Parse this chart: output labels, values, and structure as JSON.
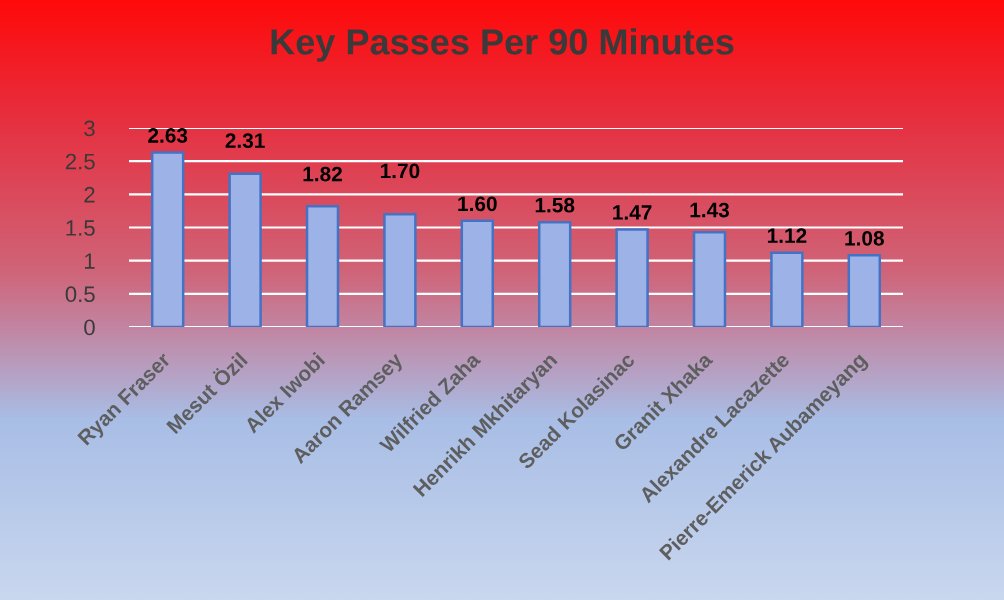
{
  "chart_data": {
    "type": "bar",
    "title": "Key Passes Per 90 Minutes",
    "categories": [
      "Ryan Fraser",
      "Mesut Özil",
      "Alex Iwobi",
      "Aaron Ramsey",
      "Wilfried Zaha",
      "Henrikh Mkhitaryan",
      "Sead Kolasinac",
      "Granit Xhaka",
      "Alexandre Lacazette",
      "Pierre-Emerick Aubameyang"
    ],
    "values": [
      2.63,
      2.31,
      1.82,
      1.7,
      1.6,
      1.58,
      1.47,
      1.43,
      1.12,
      1.08
    ],
    "value_labels": [
      "2.63",
      "2.31",
      "1.82",
      "1.70",
      "1.60",
      "1.58",
      "1.47",
      "1.43",
      "1.12",
      "1.08"
    ],
    "color": "#9db3e8",
    "ylim": [
      0,
      3
    ],
    "yticks": [
      0,
      0.5,
      1,
      1.5,
      2,
      2.5,
      3
    ],
    "grid": "y"
  }
}
